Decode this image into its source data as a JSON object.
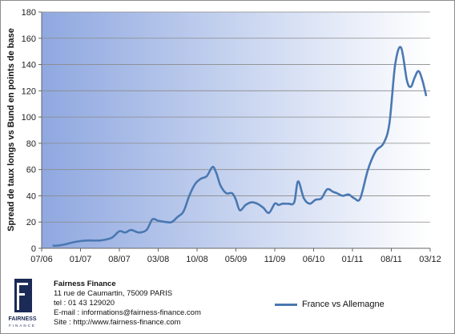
{
  "chart_data": {
    "type": "line",
    "ylabel": "Spread de taux longs vs Bund en points de base",
    "ylim": [
      0,
      180
    ],
    "y_ticks": [
      "0",
      "20",
      "40",
      "60",
      "80",
      "100",
      "120",
      "140",
      "160",
      "180"
    ],
    "x_ticks": [
      "07/06",
      "01/07",
      "08/07",
      "03/08",
      "10/08",
      "05/09",
      "11/09",
      "06/10",
      "01/11",
      "08/11",
      "03/12"
    ],
    "grid": true,
    "legend_position": "bottom-right",
    "series": [
      {
        "name": "France vs Allemagne",
        "color": "#4a78b2",
        "x": [
          0.28,
          0.4,
          0.6,
          0.8,
          1.0,
          1.2,
          1.5,
          1.8,
          2.0,
          2.15,
          2.3,
          2.5,
          2.7,
          2.85,
          3.0,
          3.2,
          3.35,
          3.5,
          3.65,
          3.8,
          3.95,
          4.1,
          4.25,
          4.4,
          4.5,
          4.6,
          4.75,
          4.9,
          5.0,
          5.1,
          5.25,
          5.4,
          5.55,
          5.7,
          5.85,
          6.0,
          6.1,
          6.2,
          6.35,
          6.5,
          6.6,
          6.75,
          6.9,
          7.05,
          7.2,
          7.35,
          7.5,
          7.6,
          7.75,
          7.9,
          8.05,
          8.2,
          8.4,
          8.6,
          8.8,
          8.95,
          9.1,
          9.25,
          9.4,
          9.5,
          9.6,
          9.7,
          9.8,
          9.9
        ],
        "values": [
          2,
          2,
          3,
          4.5,
          5.5,
          6,
          6,
          8,
          13,
          12,
          14,
          12,
          14,
          22,
          21,
          20,
          20,
          24,
          28,
          40,
          49,
          53,
          55,
          62,
          57,
          48,
          42,
          42,
          37,
          29,
          33,
          35,
          34,
          31,
          27,
          34,
          33,
          34,
          34,
          35,
          51,
          38,
          34,
          37,
          38,
          45,
          43,
          42,
          40,
          41,
          38,
          38,
          60,
          74,
          80,
          95,
          140,
          153,
          128,
          123,
          130,
          135,
          128,
          116
        ]
      }
    ]
  },
  "footer": {
    "logo_text": "FAIRNESS",
    "logo_subtext": "FINANCE",
    "company_name": "Fairness Finance",
    "address": "11 rue de Caumartin, 75009 PARIS",
    "phone": "tel : 01 43 129020",
    "email": "E-mail : informations@fairness-finance.com",
    "site": "Site : http://www.fairness-finance.com"
  }
}
